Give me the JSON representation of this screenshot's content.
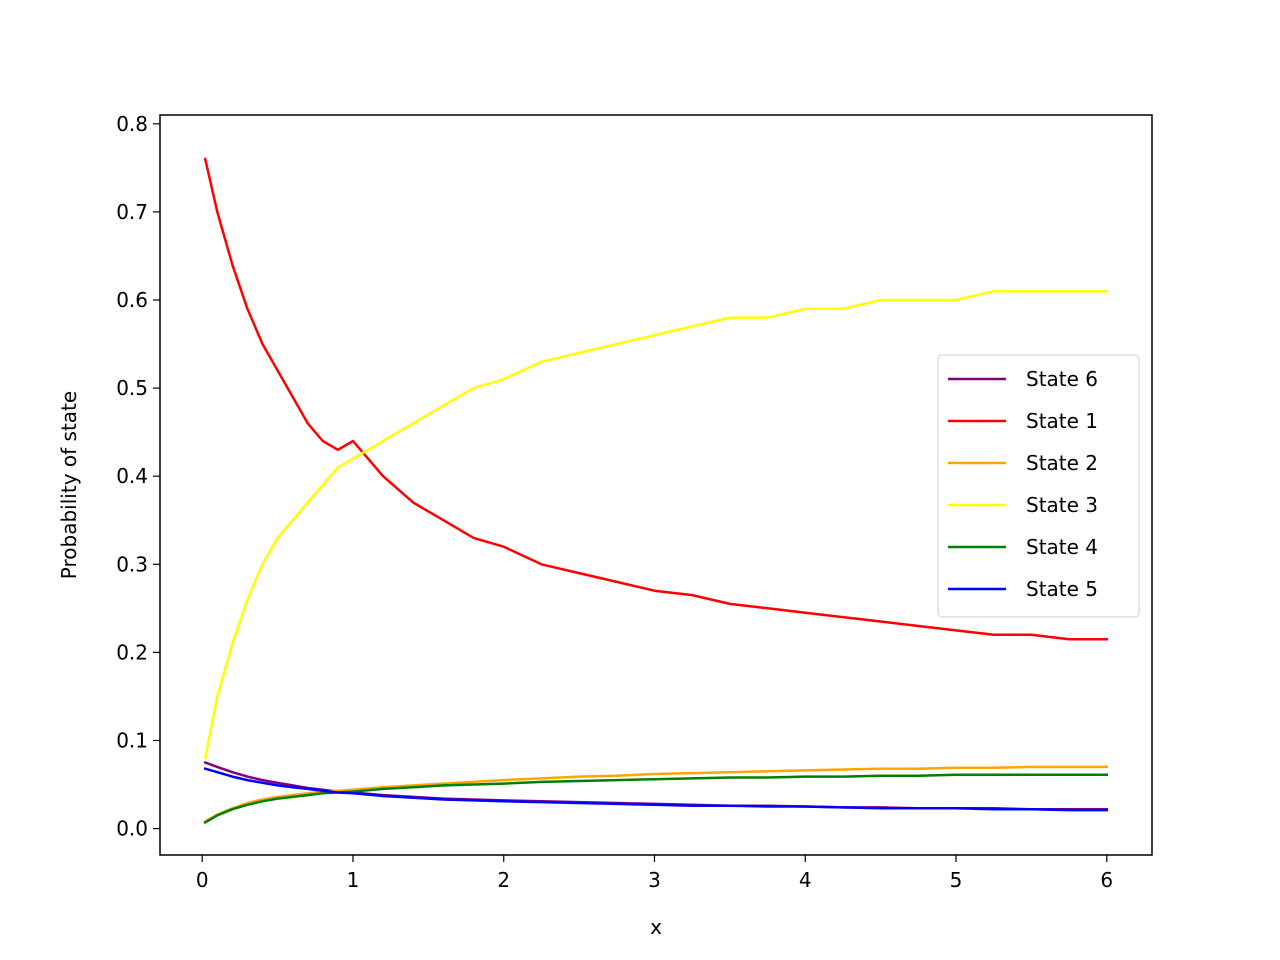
{
  "chart_data": {
    "type": "line",
    "title": "",
    "xlabel": "x",
    "ylabel": "Probability of state",
    "xlim": [
      -0.28,
      6.3
    ],
    "ylim": [
      -0.03,
      0.81
    ],
    "xticks": [
      0,
      1,
      2,
      3,
      4,
      5,
      6
    ],
    "xtick_labels": [
      "0",
      "1",
      "2",
      "3",
      "4",
      "5",
      "6"
    ],
    "yticks": [
      0.0,
      0.1,
      0.2,
      0.3,
      0.4,
      0.5,
      0.6,
      0.7,
      0.8
    ],
    "ytick_labels": [
      "0.0",
      "0.1",
      "0.2",
      "0.3",
      "0.4",
      "0.5",
      "0.6",
      "0.7",
      "0.8"
    ],
    "grid": false,
    "legend_position": "center-right",
    "x": [
      0.02,
      0.1,
      0.2,
      0.3,
      0.4,
      0.5,
      0.6,
      0.7,
      0.8,
      0.9,
      1.0,
      1.2,
      1.4,
      1.6,
      1.8,
      2.0,
      2.25,
      2.5,
      2.75,
      3.0,
      3.25,
      3.5,
      3.75,
      4.0,
      4.25,
      4.5,
      4.75,
      5.0,
      5.25,
      5.5,
      5.75,
      6.0
    ],
    "series": [
      {
        "name": "State 6",
        "color": "#800080",
        "values": [
          0.075,
          0.07,
          0.064,
          0.059,
          0.055,
          0.052,
          0.049,
          0.046,
          0.044,
          0.042,
          0.041,
          0.038,
          0.036,
          0.034,
          0.033,
          0.032,
          0.031,
          0.03,
          0.029,
          0.028,
          0.027,
          0.026,
          0.026,
          0.025,
          0.024,
          0.024,
          0.023,
          0.023,
          0.023,
          0.022,
          0.022,
          0.022
        ]
      },
      {
        "name": "State 1",
        "color": "#ff0000",
        "values": [
          0.76,
          0.7,
          0.64,
          0.59,
          0.55,
          0.52,
          0.49,
          0.46,
          0.44,
          0.43,
          0.44,
          0.4,
          0.37,
          0.35,
          0.33,
          0.32,
          0.3,
          0.29,
          0.28,
          0.27,
          0.265,
          0.255,
          0.25,
          0.245,
          0.24,
          0.235,
          0.23,
          0.225,
          0.22,
          0.22,
          0.215,
          0.215
        ]
      },
      {
        "name": "State 2",
        "color": "#ffa500",
        "values": [
          0.008,
          0.016,
          0.023,
          0.029,
          0.033,
          0.036,
          0.038,
          0.04,
          0.042,
          0.043,
          0.044,
          0.047,
          0.049,
          0.051,
          0.053,
          0.055,
          0.057,
          0.059,
          0.06,
          0.062,
          0.063,
          0.064,
          0.065,
          0.066,
          0.067,
          0.068,
          0.068,
          0.069,
          0.069,
          0.07,
          0.07,
          0.07
        ]
      },
      {
        "name": "State 3",
        "color": "#ffff00",
        "values": [
          0.08,
          0.15,
          0.21,
          0.26,
          0.3,
          0.33,
          0.35,
          0.37,
          0.39,
          0.41,
          0.42,
          0.44,
          0.46,
          0.48,
          0.5,
          0.51,
          0.53,
          0.54,
          0.55,
          0.56,
          0.57,
          0.58,
          0.58,
          0.59,
          0.59,
          0.6,
          0.6,
          0.6,
          0.61,
          0.61,
          0.61,
          0.61
        ]
      },
      {
        "name": "State 4",
        "color": "#008000",
        "values": [
          0.007,
          0.015,
          0.022,
          0.027,
          0.031,
          0.034,
          0.036,
          0.038,
          0.04,
          0.041,
          0.042,
          0.045,
          0.047,
          0.049,
          0.05,
          0.051,
          0.053,
          0.054,
          0.055,
          0.056,
          0.057,
          0.058,
          0.058,
          0.059,
          0.059,
          0.06,
          0.06,
          0.061,
          0.061,
          0.061,
          0.061,
          0.061
        ]
      },
      {
        "name": "State 5",
        "color": "#0000ff",
        "values": [
          0.068,
          0.064,
          0.059,
          0.055,
          0.052,
          0.049,
          0.047,
          0.045,
          0.043,
          0.041,
          0.04,
          0.037,
          0.035,
          0.033,
          0.032,
          0.031,
          0.03,
          0.029,
          0.028,
          0.027,
          0.026,
          0.026,
          0.025,
          0.025,
          0.024,
          0.023,
          0.023,
          0.023,
          0.022,
          0.022,
          0.021,
          0.021
        ]
      }
    ]
  }
}
